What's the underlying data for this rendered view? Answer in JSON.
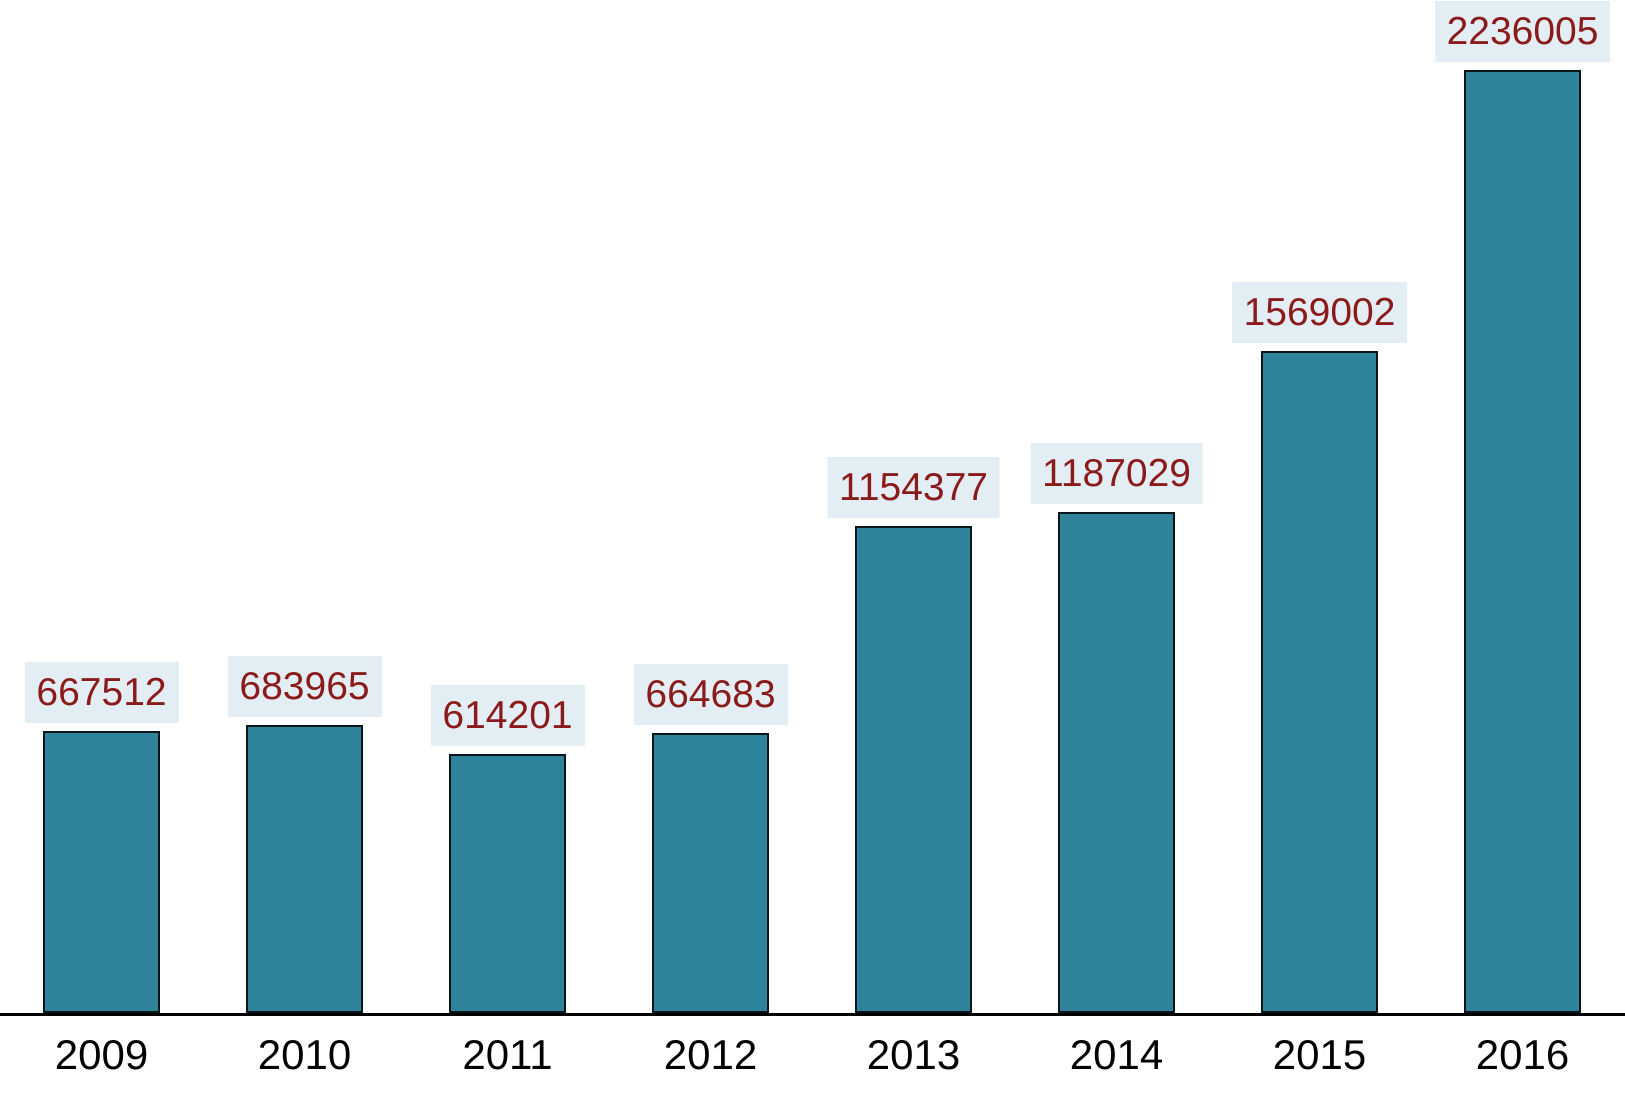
{
  "chart_data": {
    "type": "bar",
    "title": "",
    "xlabel": "",
    "ylabel": "",
    "categories": [
      "2009",
      "2010",
      "2011",
      "2012",
      "2013",
      "2014",
      "2015",
      "2016"
    ],
    "values": [
      667512,
      683965,
      614201,
      664683,
      1154377,
      1187029,
      1569002,
      2236005
    ],
    "value_labels": [
      "667512",
      "683965",
      "614201",
      "664683",
      "1154377",
      "1187029",
      "1569002",
      "2236005"
    ],
    "ylim": [
      0,
      2236005
    ],
    "grid": false,
    "legend_position": "none",
    "colors": {
      "bar_fill": "#2F849B",
      "bar_border": "#0B161B",
      "value_label_text": "#8B1A1A",
      "value_label_background": "#E3EEF4",
      "axis_line": "#000000",
      "tick_label_text": "#000000",
      "background": "#FFFFFF"
    }
  }
}
